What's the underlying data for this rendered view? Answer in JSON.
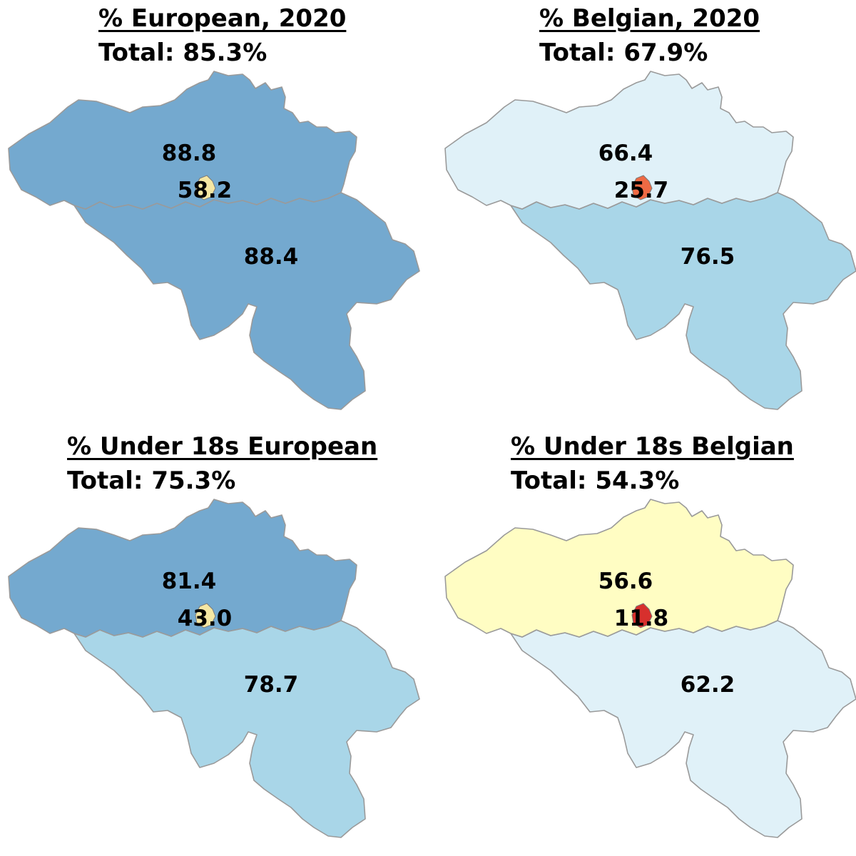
{
  "panels": [
    {
      "id": "european-2020",
      "title": "% European, 2020",
      "total": "Total: 85.3%",
      "flanders": {
        "value": "88.8",
        "color": "#74a9cf"
      },
      "brussels": {
        "value": "58.2",
        "color": "#f5e7a3"
      },
      "wallonia": {
        "value": "88.4",
        "color": "#74a9cf"
      }
    },
    {
      "id": "belgian-2020",
      "title": "% Belgian, 2020",
      "total": "Total: 67.9%",
      "flanders": {
        "value": "66.4",
        "color": "#e0f1f8"
      },
      "brussels": {
        "value": "25.7",
        "color": "#ef6a44"
      },
      "wallonia": {
        "value": "76.5",
        "color": "#a9d6e8"
      }
    },
    {
      "id": "under18-european",
      "title": "% Under 18s European",
      "total": "Total: 75.3%",
      "flanders": {
        "value": "81.4",
        "color": "#74a9cf"
      },
      "brussels": {
        "value": "43.0",
        "color": "#f5e7a3"
      },
      "wallonia": {
        "value": "78.7",
        "color": "#a9d6e8"
      }
    },
    {
      "id": "under18-belgian",
      "title": "% Under 18s Belgian",
      "total": "Total: 54.3%",
      "flanders": {
        "value": "56.6",
        "color": "#fffdc3"
      },
      "brussels": {
        "value": "11.8",
        "color": "#d7302d"
      },
      "wallonia": {
        "value": "62.2",
        "color": "#e0f1f8"
      }
    }
  ]
}
